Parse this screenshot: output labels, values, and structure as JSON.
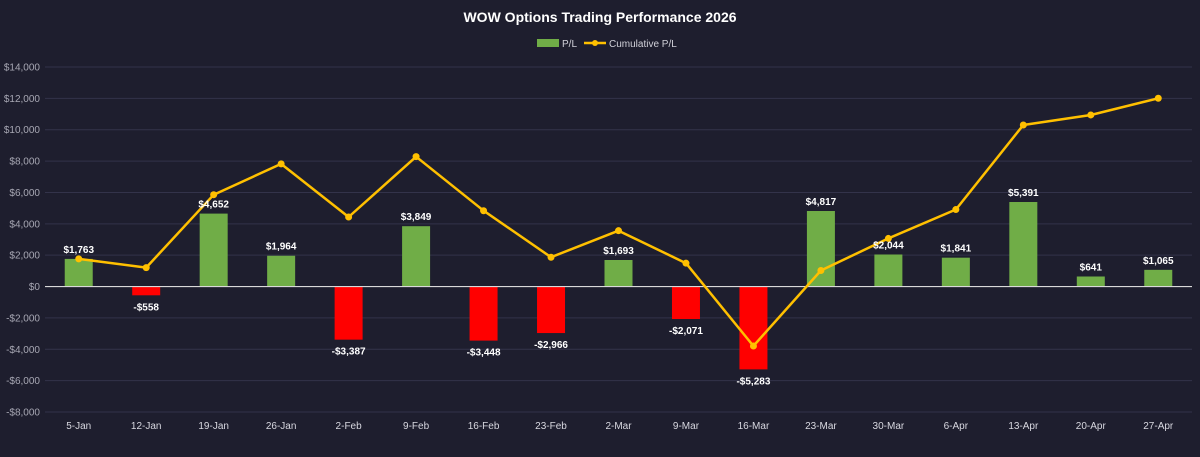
{
  "chart_data": {
    "type": "bar",
    "title": "WOW Options Trading Performance 2026",
    "categories": [
      "5-Jan",
      "12-Jan",
      "19-Jan",
      "26-Jan",
      "2-Feb",
      "9-Feb",
      "16-Feb",
      "23-Feb",
      "2-Mar",
      "9-Mar",
      "16-Mar",
      "23-Mar",
      "30-Mar",
      "6-Apr",
      "13-Apr",
      "20-Apr",
      "27-Apr"
    ],
    "series": [
      {
        "name": "P/L",
        "type": "bar",
        "values": [
          1763,
          -558,
          4652,
          1964,
          -3387,
          3849,
          -3448,
          -2966,
          1693,
          -2071,
          -5283,
          4817,
          2044,
          1841,
          5391,
          641,
          1065
        ],
        "labels": [
          "$1,763",
          "-$558",
          "$4,652",
          "$1,964",
          "-$3,387",
          "$3,849",
          "-$3,448",
          "-$2,966",
          "$1,693",
          "-$2,071",
          "-$5,283",
          "$4,817",
          "$2,044",
          "$1,841",
          "$5,391",
          "$641",
          "$1,065"
        ]
      },
      {
        "name": "Cumulative P/L",
        "type": "line",
        "values": [
          1763,
          1205,
          5857,
          7821,
          4434,
          8283,
          4835,
          1869,
          3562,
          1491,
          -3792,
          1025,
          3069,
          4910,
          10301,
          10942,
          12007
        ]
      }
    ],
    "ylim": [
      -8000,
      14000
    ],
    "ytick_values": [
      -8000,
      -6000,
      -4000,
      -2000,
      0,
      2000,
      4000,
      6000,
      8000,
      10000,
      12000,
      14000
    ],
    "ytick_labels": [
      "-$8,000",
      "-$6,000",
      "-$4,000",
      "-$2,000",
      "$0",
      "$2,000",
      "$4,000",
      "$6,000",
      "$8,000",
      "$10,000",
      "$12,000",
      "$14,000"
    ],
    "grid": true,
    "legend_position": "top-center",
    "colors": {
      "background": "#1e1e2e",
      "positive_bar": "#70ad47",
      "negative_bar": "#ff0000",
      "line": "#ffc000",
      "grid": "#33334a",
      "text": "#ffffff",
      "axis_text": "#a8a8b4"
    }
  }
}
